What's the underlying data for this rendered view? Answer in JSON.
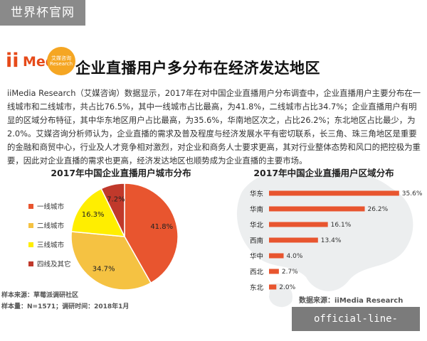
{
  "watermark_top": "世界杯官网",
  "watermark_bottom": "official-line-fifa.com",
  "logo": {
    "ii": "ii",
    "media": "Media",
    "badge_line1": "艾媒咨询",
    "badge_line2": "Research"
  },
  "headline": "企业直播用户多分布在经济发达地区",
  "paragraph": "iiMedia Research（艾媒咨询）数据显示，2017年在对中国企业直播用户分布调查中，企业直播用户主要分布在一线城市和二线城市，共占比76.5%，其中一线城市占比最高，为41.8%，二线城市占比34.7%；企业直播用户有明显的区域分布特征，其中华东地区用户占比最高，为35.6%，华南地区次之，占比26.2%；东北地区占比最少，为2.0%。艾媒咨询分析师认为，企业直播的需求及普及程度与经济发展水平有密切联系，长三角、珠三角地区是重要的金融和商贸中心，行业及人才竞争相对激烈，对企业和商务人士要求更高，其对行业整体态势和风口的把控极为重要，因此对企业直播的需求也更高，经济发达地区也顺势成为企业直播的主要市场。",
  "notes": {
    "sample_source": "样本来源：草莓派调研社区",
    "sample_size": "样本量：N=1571；调研时间：2018年1月"
  },
  "data_source": "数据来源：iiMedia Research",
  "chart_data": [
    {
      "type": "pie",
      "title": "2017年中国企业直播用户城市分布",
      "categories": [
        "一线城市",
        "二线城市",
        "三线城市",
        "四线及其它"
      ],
      "values": [
        41.8,
        34.7,
        16.3,
        7.2
      ],
      "value_labels": [
        "41.8%",
        "34.7%",
        "16.3%",
        "7.2%"
      ],
      "colors": [
        "#e8552f",
        "#f5c242",
        "#ffee00",
        "#c0392b"
      ],
      "legend_position": "left"
    },
    {
      "type": "bar",
      "orientation": "horizontal",
      "title": "2017年中国企业直播用户区域分布",
      "categories": [
        "华东",
        "华南",
        "华北",
        "西南",
        "华中",
        "西北",
        "东北"
      ],
      "values": [
        35.6,
        26.2,
        16.1,
        13.4,
        4.0,
        2.7,
        2.0
      ],
      "value_labels": [
        "35.6%",
        "26.2%",
        "16.1%",
        "13.4%",
        "4.0%",
        "2.7%",
        "2.0%"
      ],
      "color": "#e8552f",
      "xlim": [
        0,
        37
      ]
    }
  ]
}
